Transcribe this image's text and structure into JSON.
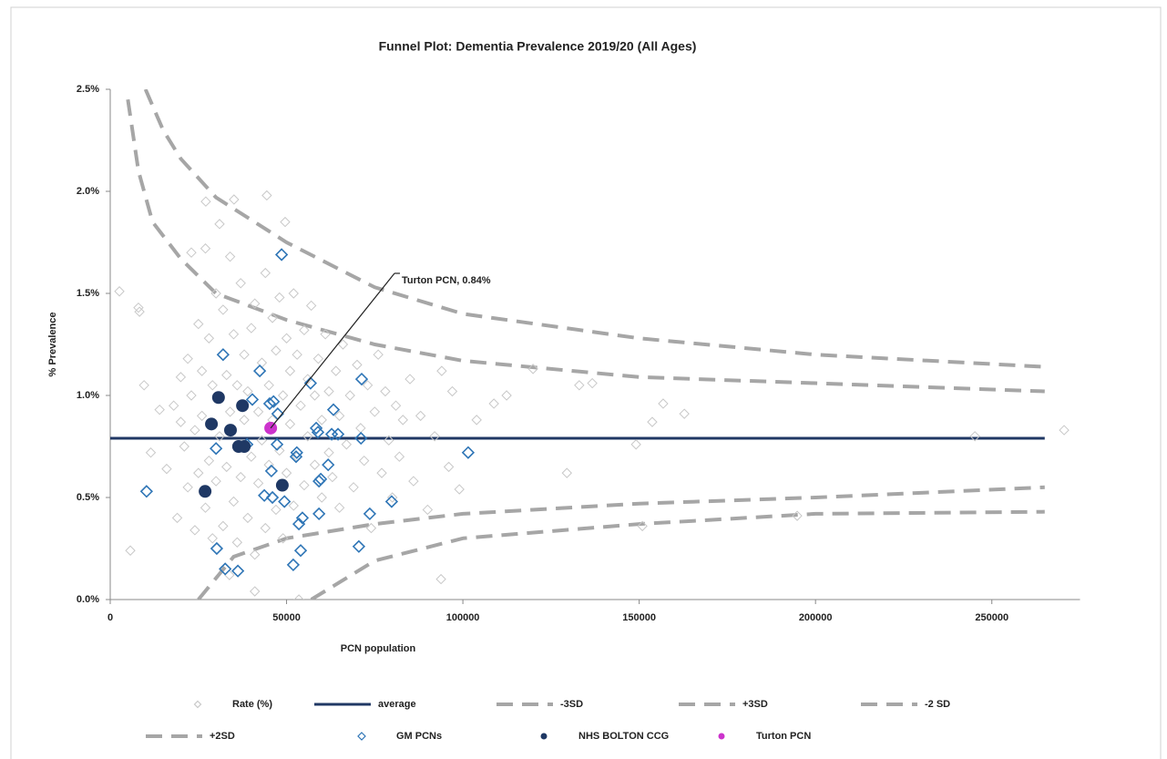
{
  "chart_data": {
    "type": "scatter",
    "title": "Funnel Plot: Dementia Prevalence 2019/20 (All Ages)",
    "x_label": "PCN population",
    "y_label": "% Prevalence",
    "annotation": "Turton PCN, 0.84%",
    "xlim": [
      0,
      275000
    ],
    "xticks": [
      0,
      50000,
      100000,
      150000,
      200000,
      250000
    ],
    "ylim": [
      0,
      2.5
    ],
    "yticks": [
      {
        "value": 0,
        "label": "0.0%"
      },
      {
        "value": 0.5,
        "label": "0.5%"
      },
      {
        "value": 1,
        "label": "1.0%"
      },
      {
        "value": 1.5,
        "label": "1.5%"
      },
      {
        "value": 2,
        "label": "2.0%"
      },
      {
        "value": 2.5,
        "label": "2.5%"
      }
    ],
    "series": [
      {
        "name": "Rate (%)",
        "color": "#c8c8c8",
        "mark": "diamond",
        "x": [
          2600,
          5700,
          8000,
          8300,
          9600,
          11500,
          27100,
          35100,
          44400,
          49600,
          33800,
          41000,
          53500,
          93800,
          103900,
          108800,
          112400,
          119900,
          129500,
          133000,
          136700,
          149100,
          150900,
          153700,
          156800,
          162800,
          194800,
          245200,
          270500,
          14000,
          16000,
          18000,
          19000,
          20000,
          20000,
          21000,
          22000,
          22000,
          23000,
          23000,
          24000,
          24000,
          25000,
          25000,
          26000,
          26000,
          27000,
          27000,
          28000,
          28000,
          29000,
          29000,
          30000,
          30000,
          31000,
          31000,
          32000,
          32000,
          33000,
          33000,
          34000,
          34000,
          35000,
          35000,
          36000,
          36000,
          37000,
          37000,
          38000,
          38000,
          39000,
          39000,
          40000,
          40000,
          41000,
          41000,
          42000,
          42000,
          43000,
          43000,
          44000,
          44000,
          45000,
          45000,
          46000,
          46000,
          47000,
          47000,
          48000,
          48000,
          49000,
          49000,
          50000,
          50000,
          51000,
          51000,
          52000,
          52000,
          53000,
          53000,
          54000,
          55000,
          55000,
          56000,
          56000,
          57000,
          58000,
          58000,
          59000,
          60000,
          60000,
          61000,
          62000,
          62000,
          63000,
          64000,
          65000,
          65000,
          66000,
          67000,
          68000,
          69000,
          70000,
          71000,
          72000,
          73000,
          74000,
          75000,
          76000,
          77000,
          78000,
          79000,
          80000,
          81000,
          82000,
          83000,
          85000,
          86000,
          88000,
          90000,
          92000,
          94000,
          96000,
          97000,
          99000
        ],
        "values": [
          1.51,
          0.24,
          1.43,
          1.41,
          1.05,
          0.72,
          1.95,
          1.96,
          1.98,
          1.85,
          0.12,
          0.04,
          0.0,
          0.1,
          0.88,
          0.96,
          1.0,
          1.13,
          0.62,
          1.05,
          1.06,
          0.76,
          0.36,
          0.87,
          0.96,
          0.91,
          0.41,
          0.8,
          0.83,
          0.93,
          0.64,
          0.95,
          0.4,
          0.87,
          1.09,
          0.75,
          1.18,
          0.55,
          1.7,
          1.0,
          0.83,
          0.34,
          1.35,
          0.62,
          1.12,
          0.9,
          0.45,
          1.72,
          1.28,
          0.68,
          0.3,
          1.05,
          1.5,
          0.58,
          1.84,
          0.8,
          1.42,
          0.36,
          1.1,
          0.65,
          1.68,
          0.92,
          0.48,
          1.3,
          1.05,
          0.28,
          1.55,
          0.6,
          0.88,
          1.2,
          0.4,
          1.02,
          1.33,
          0.7,
          0.22,
          1.45,
          0.92,
          0.57,
          1.16,
          0.78,
          1.6,
          0.35,
          1.05,
          0.66,
          1.38,
          0.88,
          0.44,
          1.22,
          1.48,
          0.73,
          1.0,
          0.3,
          1.28,
          0.62,
          1.12,
          0.86,
          1.5,
          0.46,
          1.2,
          0.7,
          0.95,
          1.32,
          0.56,
          1.08,
          0.8,
          1.44,
          0.66,
          1.0,
          1.18,
          0.5,
          0.88,
          1.3,
          0.72,
          1.02,
          0.6,
          1.12,
          0.9,
          0.45,
          1.25,
          0.76,
          1.0,
          0.55,
          1.15,
          0.84,
          0.68,
          1.05,
          0.35,
          0.92,
          1.2,
          0.62,
          1.02,
          0.78,
          0.5,
          0.95,
          0.7,
          0.88,
          1.08,
          0.58,
          0.9,
          0.44,
          0.8,
          1.12,
          0.65,
          1.02,
          0.54
        ]
      },
      {
        "name": "average",
        "color": "#203864",
        "mark": "line",
        "dash": false,
        "x": [
          0,
          265000
        ],
        "values": [
          0.79,
          0.79
        ]
      },
      {
        "name": "-3SD",
        "color": "#a6a6a6",
        "mark": "line",
        "dash": true,
        "x": [
          57000,
          75000,
          100000,
          150000,
          200000,
          265000
        ],
        "values": [
          0,
          0.19,
          0.3,
          0.37,
          0.42,
          0.43
        ]
      },
      {
        "name": "+3SD",
        "color": "#a6a6a6",
        "mark": "line",
        "dash": true,
        "x": [
          10000,
          15000,
          20000,
          30000,
          50000,
          75000,
          100000,
          150000,
          200000,
          265000
        ],
        "values": [
          2.5,
          2.3,
          2.16,
          1.97,
          1.75,
          1.53,
          1.4,
          1.28,
          1.2,
          1.14
        ]
      },
      {
        "name": "-2 SD",
        "color": "#a6a6a6",
        "mark": "line",
        "dash": true,
        "x": [
          25000,
          35000,
          50000,
          75000,
          100000,
          150000,
          200000,
          265000
        ],
        "values": [
          0,
          0.21,
          0.3,
          0.37,
          0.42,
          0.47,
          0.5,
          0.55
        ]
      },
      {
        "name": "+2SD",
        "color": "#a6a6a6",
        "mark": "line",
        "dash": true,
        "x": [
          5000,
          8000,
          12000,
          20000,
          30000,
          50000,
          75000,
          100000,
          150000,
          200000,
          265000
        ],
        "values": [
          2.45,
          2.1,
          1.85,
          1.67,
          1.5,
          1.37,
          1.25,
          1.17,
          1.09,
          1.06,
          1.02
        ]
      },
      {
        "name": "GM PCNs",
        "color": "#2e75b6",
        "mark": "diamond",
        "x": [
          10300,
          32000,
          30000,
          30200,
          32600,
          36200,
          42400,
          40300,
          48600,
          45200,
          46300,
          47500,
          47300,
          43700,
          45700,
          46000,
          49400,
          51900,
          54000,
          53500,
          54500,
          56800,
          52900,
          52700,
          59200,
          59700,
          59200,
          58400,
          58900,
          61800,
          63300,
          64600,
          62800,
          70500,
          71100,
          71300,
          73600,
          79800,
          101500,
          38800
        ],
        "values": [
          0.53,
          1.2,
          0.74,
          0.25,
          0.15,
          0.14,
          1.12,
          0.98,
          1.69,
          0.96,
          0.97,
          0.91,
          0.76,
          0.51,
          0.63,
          0.5,
          0.48,
          0.17,
          0.24,
          0.37,
          0.4,
          1.06,
          0.72,
          0.7,
          0.58,
          0.59,
          0.42,
          0.84,
          0.82,
          0.66,
          0.93,
          0.81,
          0.81,
          0.26,
          0.79,
          1.08,
          0.42,
          0.48,
          0.72,
          0.76
        ]
      },
      {
        "name": "NHS BOLTON CCG",
        "color": "#1f3864",
        "mark": "circle",
        "x": [
          28700,
          30700,
          34100,
          36400,
          37500,
          38000,
          48800,
          26900
        ],
        "values": [
          0.86,
          0.99,
          0.83,
          0.75,
          0.95,
          0.75,
          0.56,
          0.53
        ]
      },
      {
        "name": "Turton PCN",
        "color": "#cc33cc",
        "mark": "circle",
        "x": [
          45500
        ],
        "values": [
          0.84
        ]
      }
    ]
  }
}
